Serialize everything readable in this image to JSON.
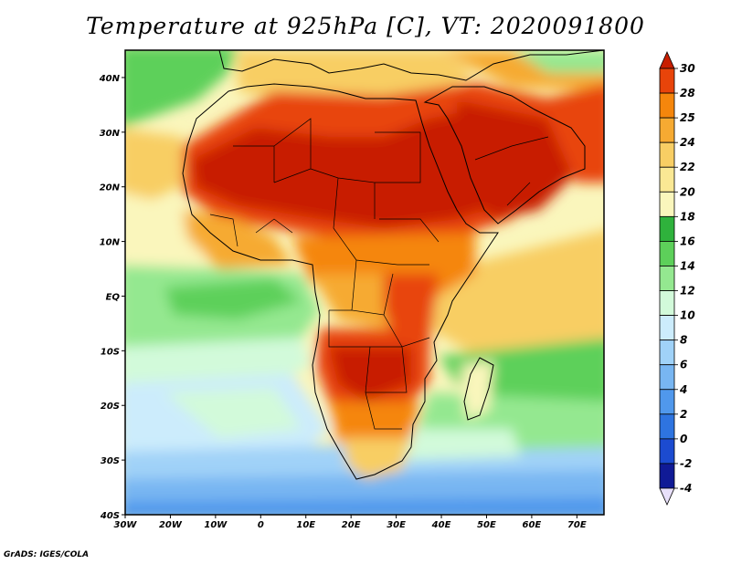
{
  "title": "Temperature at 925hPa [C], VT: 2020091800",
  "credit": "GrADS: IGES/COLA",
  "map": {
    "lon_range": [
      -30,
      76
    ],
    "lat_range": [
      -40,
      45
    ],
    "x_ticks": [
      {
        "lon": -30,
        "label": "30W"
      },
      {
        "lon": -20,
        "label": "20W"
      },
      {
        "lon": -10,
        "label": "10W"
      },
      {
        "lon": 0,
        "label": "0"
      },
      {
        "lon": 10,
        "label": "10E"
      },
      {
        "lon": 20,
        "label": "20E"
      },
      {
        "lon": 30,
        "label": "30E"
      },
      {
        "lon": 40,
        "label": "40E"
      },
      {
        "lon": 50,
        "label": "50E"
      },
      {
        "lon": 60,
        "label": "60E"
      },
      {
        "lon": 70,
        "label": "70E"
      }
    ],
    "y_ticks": [
      {
        "lat": 40,
        "label": "40N"
      },
      {
        "lat": 30,
        "label": "30N"
      },
      {
        "lat": 20,
        "label": "20N"
      },
      {
        "lat": 10,
        "label": "10N"
      },
      {
        "lat": 0,
        "label": "EQ"
      },
      {
        "lat": -10,
        "label": "10S"
      },
      {
        "lat": -20,
        "label": "20S"
      },
      {
        "lat": -30,
        "label": "30S"
      },
      {
        "lat": -40,
        "label": "40S"
      }
    ]
  },
  "colorbar": {
    "levels": [
      "30",
      "28",
      "25",
      "24",
      "22",
      "20",
      "18",
      "16",
      "14",
      "12",
      "10",
      "8",
      "6",
      "4",
      "2",
      "0",
      "-2",
      "-4"
    ],
    "colors": [
      "#c81e00",
      "#e8440a",
      "#f5860c",
      "#f6aa32",
      "#f8ce64",
      "#fae894",
      "#faf6bc",
      "#2fb23c",
      "#5dd05a",
      "#94e890",
      "#d2fada",
      "#ccecfc",
      "#a0d2f8",
      "#78b6f2",
      "#5098ec",
      "#2e74e0",
      "#1c4bd0",
      "#101a96",
      "#e8e0fa"
    ]
  }
}
